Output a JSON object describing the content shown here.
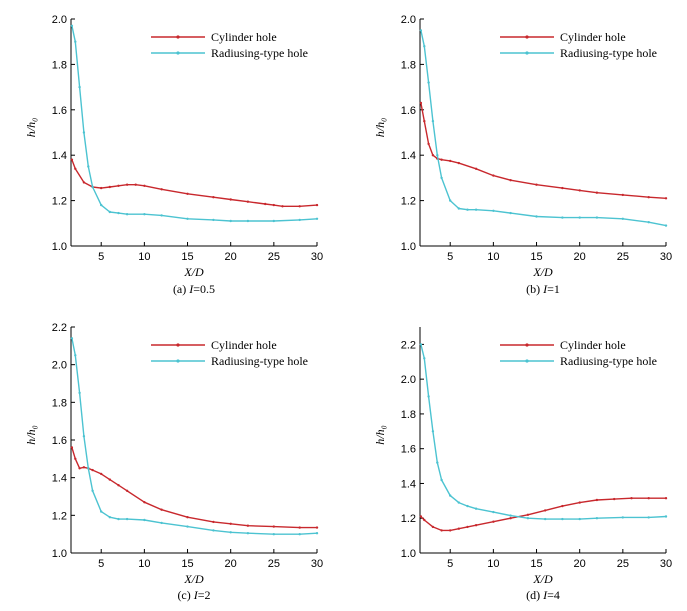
{
  "colors": {
    "cylinder": "#c8282d",
    "radiusing": "#4cc3d1"
  },
  "chart_data": [
    {
      "type": "line",
      "caption_prefix": "(a) ",
      "caption_var": "I",
      "caption_rest": "=0.5",
      "xlabel": "X/D",
      "ylabel": "h/h₀",
      "xlim": [
        1.5,
        30
      ],
      "ylim": [
        1.0,
        2.0
      ],
      "xticks": [
        5,
        10,
        15,
        20,
        25,
        30
      ],
      "yticks": [
        1.0,
        1.2,
        1.4,
        1.6,
        1.8,
        2.0
      ],
      "ytick_labels": [
        "1.0",
        "1.2",
        "1.4",
        "1.6",
        "1.8",
        "2.0"
      ],
      "legend_position": "top-right",
      "series": [
        {
          "name": "Cylinder hole",
          "x": [
            1.6,
            2,
            3,
            4,
            5,
            6,
            7,
            8,
            9,
            10,
            12,
            15,
            18,
            20,
            22,
            24,
            25,
            26,
            28,
            30
          ],
          "y": [
            1.38,
            1.34,
            1.28,
            1.26,
            1.255,
            1.26,
            1.265,
            1.27,
            1.27,
            1.265,
            1.25,
            1.23,
            1.215,
            1.205,
            1.195,
            1.185,
            1.18,
            1.175,
            1.175,
            1.18
          ]
        },
        {
          "name": "Radiusing-type hole",
          "x": [
            1.6,
            2,
            2.5,
            3,
            3.5,
            4,
            5,
            6,
            7,
            8,
            10,
            12,
            15,
            18,
            20,
            22,
            25,
            28,
            30
          ],
          "y": [
            1.97,
            1.9,
            1.7,
            1.5,
            1.35,
            1.26,
            1.18,
            1.15,
            1.145,
            1.14,
            1.14,
            1.135,
            1.12,
            1.115,
            1.11,
            1.11,
            1.11,
            1.115,
            1.12
          ]
        }
      ]
    },
    {
      "type": "line",
      "caption_prefix": "(b) ",
      "caption_var": "I",
      "caption_rest": "=1",
      "xlabel": "X/D",
      "ylabel": "h/h₀",
      "xlim": [
        1.5,
        30
      ],
      "ylim": [
        1.0,
        2.0
      ],
      "xticks": [
        5,
        10,
        15,
        20,
        25,
        30
      ],
      "yticks": [
        1.0,
        1.2,
        1.4,
        1.6,
        1.8,
        2.0
      ],
      "ytick_labels": [
        "1.0",
        "1.2",
        "1.4",
        "1.6",
        "1.8",
        "2.0"
      ],
      "legend_position": "top-right",
      "series": [
        {
          "name": "Cylinder hole",
          "x": [
            1.6,
            2,
            2.5,
            3,
            3.5,
            4,
            5,
            6,
            8,
            10,
            12,
            15,
            18,
            20,
            22,
            25,
            28,
            30
          ],
          "y": [
            1.63,
            1.55,
            1.45,
            1.4,
            1.385,
            1.38,
            1.375,
            1.365,
            1.34,
            1.31,
            1.29,
            1.27,
            1.255,
            1.245,
            1.235,
            1.225,
            1.215,
            1.21
          ]
        },
        {
          "name": "Radiusing-type hole",
          "x": [
            1.6,
            2,
            2.5,
            3,
            3.5,
            4,
            5,
            6,
            7,
            8,
            10,
            12,
            15,
            18,
            20,
            22,
            25,
            28,
            30
          ],
          "y": [
            1.95,
            1.88,
            1.72,
            1.55,
            1.4,
            1.3,
            1.2,
            1.165,
            1.16,
            1.16,
            1.155,
            1.145,
            1.13,
            1.125,
            1.125,
            1.125,
            1.12,
            1.105,
            1.09
          ]
        }
      ]
    },
    {
      "type": "line",
      "caption_prefix": "(c) ",
      "caption_var": "I",
      "caption_rest": "=2",
      "xlabel": "X/D",
      "ylabel": "h/h₀",
      "xlim": [
        1.5,
        30
      ],
      "ylim": [
        1.0,
        2.2
      ],
      "xticks": [
        5,
        10,
        15,
        20,
        25,
        30
      ],
      "yticks": [
        1.0,
        1.2,
        1.4,
        1.6,
        1.8,
        2.0,
        2.2
      ],
      "ytick_labels": [
        "1.0",
        "1.2",
        "1.4",
        "1.6",
        "1.8",
        "2.0",
        "2.2"
      ],
      "legend_position": "top-right",
      "series": [
        {
          "name": "Cylinder hole",
          "x": [
            1.6,
            2,
            2.5,
            3,
            3.5,
            4,
            5,
            6,
            7,
            8,
            10,
            12,
            15,
            18,
            20,
            22,
            25,
            28,
            30
          ],
          "y": [
            1.56,
            1.5,
            1.45,
            1.455,
            1.45,
            1.44,
            1.42,
            1.39,
            1.36,
            1.33,
            1.27,
            1.23,
            1.19,
            1.165,
            1.155,
            1.145,
            1.14,
            1.135,
            1.135
          ]
        },
        {
          "name": "Radiusing-type hole",
          "x": [
            1.6,
            2,
            2.5,
            3,
            3.5,
            4,
            5,
            6,
            7,
            8,
            10,
            12,
            15,
            18,
            20,
            22,
            25,
            28,
            30
          ],
          "y": [
            2.14,
            2.05,
            1.85,
            1.62,
            1.45,
            1.33,
            1.22,
            1.19,
            1.18,
            1.18,
            1.175,
            1.16,
            1.14,
            1.12,
            1.11,
            1.105,
            1.1,
            1.1,
            1.105
          ]
        }
      ]
    },
    {
      "type": "line",
      "caption_prefix": "(d) ",
      "caption_var": "I",
      "caption_rest": "=4",
      "xlabel": "X/D",
      "ylabel": "h/h₀",
      "xlim": [
        1.5,
        30
      ],
      "ylim": [
        1.0,
        2.3
      ],
      "xticks": [
        5,
        10,
        15,
        20,
        25,
        30
      ],
      "yticks": [
        1.0,
        1.2,
        1.4,
        1.6,
        1.8,
        2.0,
        2.2
      ],
      "ytick_labels": [
        "1.0",
        "1.2",
        "1.4",
        "1.6",
        "1.8",
        "2.0",
        "2.2"
      ],
      "legend_position": "top-right",
      "series": [
        {
          "name": "Cylinder hole",
          "x": [
            1.6,
            2,
            3,
            4,
            5,
            6,
            7,
            8,
            10,
            12,
            14,
            16,
            18,
            20,
            22,
            24,
            26,
            28,
            30
          ],
          "y": [
            1.21,
            1.19,
            1.15,
            1.13,
            1.13,
            1.14,
            1.15,
            1.16,
            1.18,
            1.2,
            1.22,
            1.245,
            1.27,
            1.29,
            1.305,
            1.31,
            1.315,
            1.315,
            1.315
          ]
        },
        {
          "name": "Radiusing-type hole",
          "x": [
            1.6,
            2,
            2.5,
            3,
            3.5,
            4,
            5,
            6,
            7,
            8,
            10,
            12,
            14,
            16,
            18,
            20,
            22,
            25,
            28,
            30
          ],
          "y": [
            2.2,
            2.12,
            1.9,
            1.7,
            1.52,
            1.42,
            1.33,
            1.29,
            1.27,
            1.255,
            1.235,
            1.215,
            1.2,
            1.195,
            1.195,
            1.195,
            1.2,
            1.205,
            1.205,
            1.21
          ]
        }
      ]
    }
  ]
}
